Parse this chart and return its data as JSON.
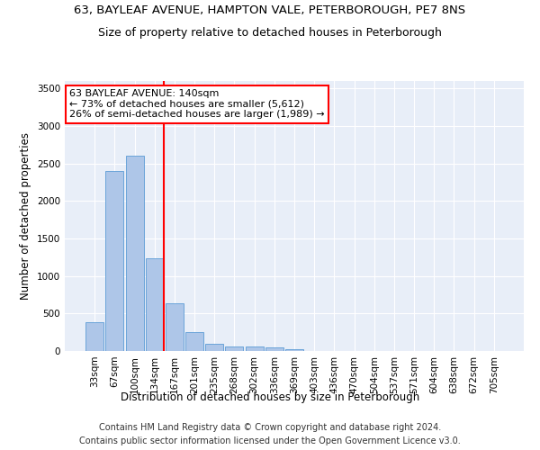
{
  "title_line1": "63, BAYLEAF AVENUE, HAMPTON VALE, PETERBOROUGH, PE7 8NS",
  "title_line2": "Size of property relative to detached houses in Peterborough",
  "xlabel": "Distribution of detached houses by size in Peterborough",
  "ylabel": "Number of detached properties",
  "categories": [
    "33sqm",
    "67sqm",
    "100sqm",
    "134sqm",
    "167sqm",
    "201sqm",
    "235sqm",
    "268sqm",
    "302sqm",
    "336sqm",
    "369sqm",
    "403sqm",
    "436sqm",
    "470sqm",
    "504sqm",
    "537sqm",
    "571sqm",
    "604sqm",
    "638sqm",
    "672sqm",
    "705sqm"
  ],
  "values": [
    390,
    2400,
    2600,
    1240,
    640,
    255,
    100,
    60,
    55,
    45,
    30,
    0,
    0,
    0,
    0,
    0,
    0,
    0,
    0,
    0,
    0
  ],
  "bar_color": "#aec6e8",
  "bar_edge_color": "#5b9bd5",
  "highlight_line_color": "red",
  "annotation_line1": "63 BAYLEAF AVENUE: 140sqm",
  "annotation_line2": "← 73% of detached houses are smaller (5,612)",
  "annotation_line3": "26% of semi-detached houses are larger (1,989) →",
  "annotation_box_color": "white",
  "annotation_box_edge_color": "red",
  "ylim": [
    0,
    3600
  ],
  "yticks": [
    0,
    500,
    1000,
    1500,
    2000,
    2500,
    3000,
    3500
  ],
  "background_color": "#e8eef8",
  "grid_color": "white",
  "footer_line1": "Contains HM Land Registry data © Crown copyright and database right 2024.",
  "footer_line2": "Contains public sector information licensed under the Open Government Licence v3.0.",
  "title_fontsize": 9.5,
  "subtitle_fontsize": 9,
  "axis_label_fontsize": 8.5,
  "tick_fontsize": 7.5,
  "annotation_fontsize": 8,
  "footer_fontsize": 7
}
